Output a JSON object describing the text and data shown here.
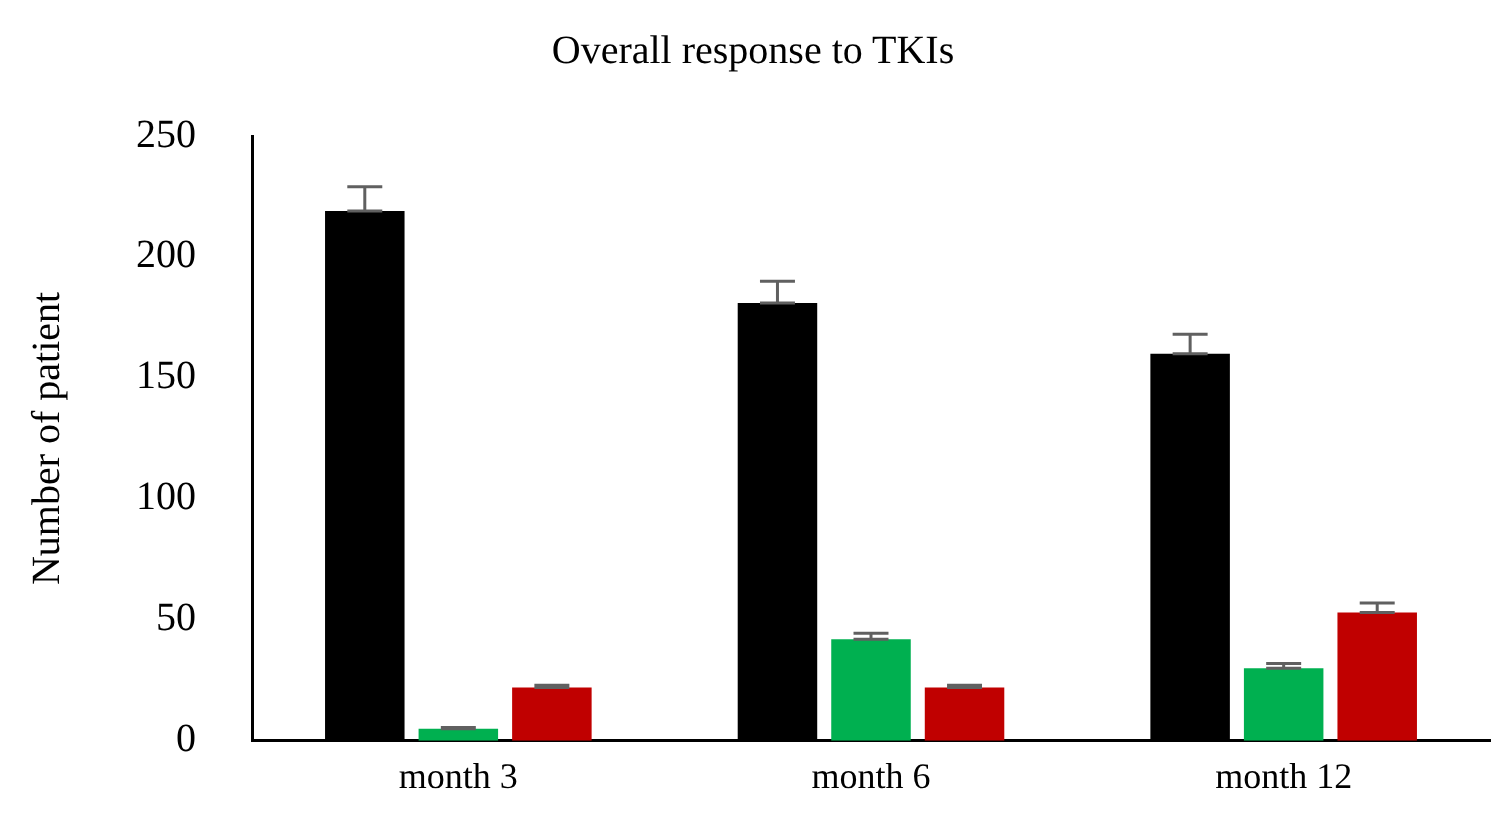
{
  "chart_data": {
    "type": "bar",
    "title": "Overall response to TKIs",
    "ylabel": "Number of patient",
    "categories": [
      "month 3",
      "month 6",
      "month 12"
    ],
    "series": [
      {
        "color": "#000000",
        "values": [
          219,
          181,
          160
        ],
        "errors": [
          [
            219,
            229
          ],
          [
            181,
            190
          ],
          [
            160,
            168
          ]
        ]
      },
      {
        "color": "#00b050",
        "values": [
          5,
          42,
          30
        ],
        "errors": [
          [
            5,
            5.5
          ],
          [
            42,
            44.5
          ],
          [
            30,
            32
          ]
        ]
      },
      {
        "color": "#c00000",
        "values": [
          22,
          22,
          53
        ],
        "errors": [
          [
            22,
            23
          ],
          [
            22,
            23
          ],
          [
            53,
            57
          ]
        ]
      }
    ],
    "ylim": [
      0,
      250
    ],
    "yticks": [
      0,
      50,
      100,
      150,
      200,
      250
    ],
    "grid": false,
    "legend": false
  }
}
